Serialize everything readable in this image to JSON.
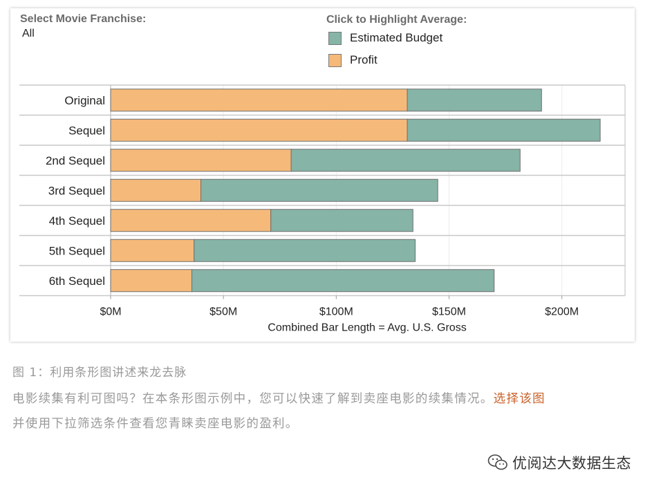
{
  "filter": {
    "title": "Select Movie Franchise:",
    "value": "All"
  },
  "legend": {
    "title": "Click to Highlight Average:",
    "items": [
      {
        "label": "Estimated Budget",
        "color": "#86b4a7"
      },
      {
        "label": "Profit",
        "color": "#f5b97a"
      }
    ]
  },
  "chart_data": {
    "type": "bar",
    "orientation": "horizontal",
    "stacked": true,
    "categories": [
      "Original",
      "Sequel",
      "2nd Sequel",
      "3rd Sequel",
      "4th Sequel",
      "5th Sequel",
      "6th Sequel"
    ],
    "series": [
      {
        "name": "Profit",
        "color": "#f5b97a",
        "values": [
          131.5,
          131.5,
          80,
          40,
          71,
          37,
          36
        ]
      },
      {
        "name": "Estimated Budget",
        "color": "#86b4a7",
        "values": [
          59.5,
          85.5,
          101.5,
          105,
          63,
          98,
          134
        ]
      }
    ],
    "xlabel": "Combined Bar Length = Avg. U.S. Gross",
    "xticks": [
      "$0M",
      "$50M",
      "$100M",
      "$150M",
      "$200M"
    ],
    "xtick_values": [
      0,
      50,
      100,
      150,
      200
    ],
    "xlim": [
      0,
      228
    ],
    "grid": true
  },
  "caption": {
    "line1": "图 1：利用条形图讲述来龙去脉",
    "line2": "电影续集有利可图吗？在本条形图示例中，您可以快速了解到卖座电影的续集情况。",
    "link": "选择该图",
    "line3": "并使用下拉筛选条件查看您青睐卖座电影的盈利。"
  },
  "watermark": {
    "text": "优阅达大数据生态",
    "icon": "wechat-icon"
  }
}
